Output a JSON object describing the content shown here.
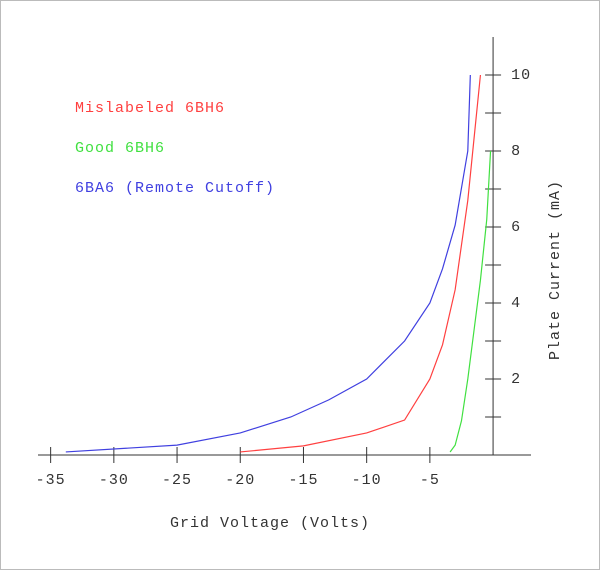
{
  "chart_data": {
    "type": "line",
    "x_label": "Grid Voltage (Volts)",
    "y_label": "Plate Current (mA)",
    "series": [
      {
        "name": "Mislabeled 6BH6",
        "color": "#ff4040",
        "x": [
          -20,
          -15,
          -10,
          -7,
          -5,
          -4,
          -3,
          -2,
          -1
        ],
        "values": [
          0.08,
          0.24,
          0.58,
          0.92,
          2.0,
          2.9,
          4.35,
          6.7,
          10
        ]
      },
      {
        "name": "Good 6BH6",
        "color": "#40e040",
        "x": [
          -3.4,
          -3,
          -2.5,
          -2,
          -1,
          -0.5,
          -0.2
        ],
        "values": [
          0.08,
          0.26,
          0.9,
          2.0,
          4.6,
          6.2,
          8.0
        ]
      },
      {
        "name": "6BA6 (Remote Cutoff)",
        "color": "#4040e0",
        "x": [
          -33.8,
          -25,
          -20,
          -16,
          -13,
          -10,
          -7,
          -5,
          -4,
          -3,
          -2,
          -1.8
        ],
        "values": [
          0.08,
          0.26,
          0.58,
          1.0,
          1.45,
          2.0,
          3.0,
          4.0,
          4.9,
          6.05,
          8.0,
          10
        ]
      }
    ],
    "xlim": [
      -36,
      3
    ],
    "ylim": [
      0,
      11
    ],
    "xticks": [
      -35,
      -30,
      -25,
      -20,
      -15,
      -10,
      -5
    ],
    "yticks": [
      2,
      4,
      6,
      8,
      10
    ],
    "y_minor_ticks": [
      1,
      3,
      5,
      7,
      9
    ]
  }
}
